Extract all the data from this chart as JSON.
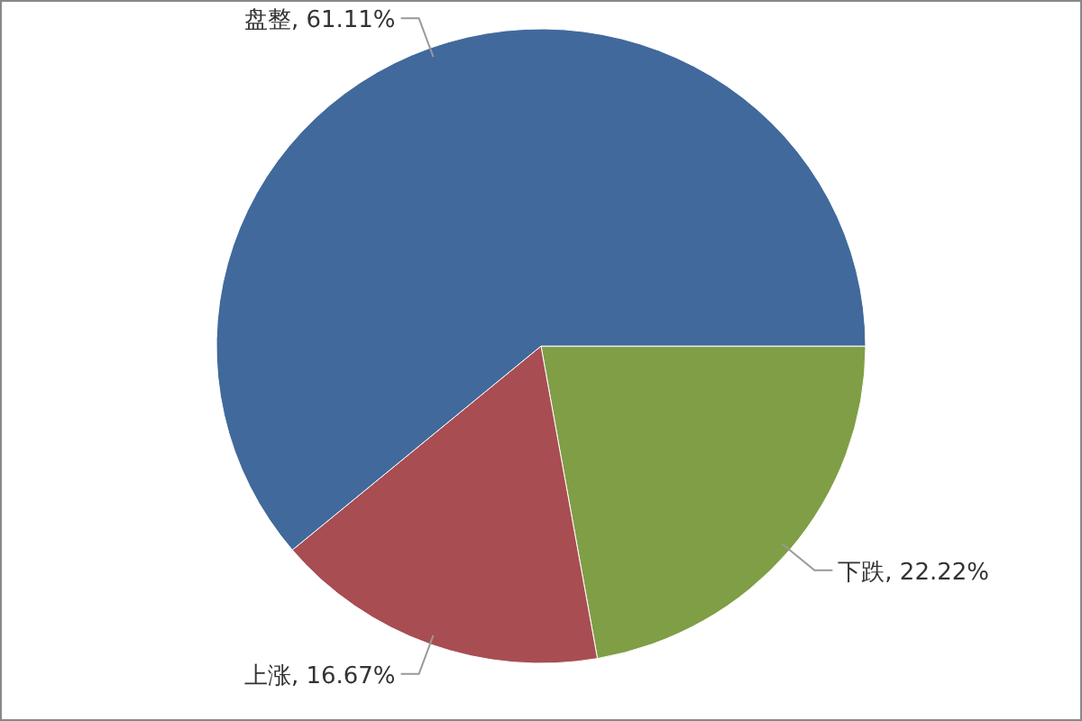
{
  "chart_data": {
    "type": "pie",
    "categories": [
      "下跌",
      "上涨",
      "盘整"
    ],
    "values": [
      22.22,
      16.67,
      61.11
    ],
    "value_labels": [
      ", 22.22%",
      ", 16.67%",
      ", 61.11%"
    ],
    "colors": [
      "#7f9e45",
      "#a84d52",
      "#41699c"
    ]
  }
}
